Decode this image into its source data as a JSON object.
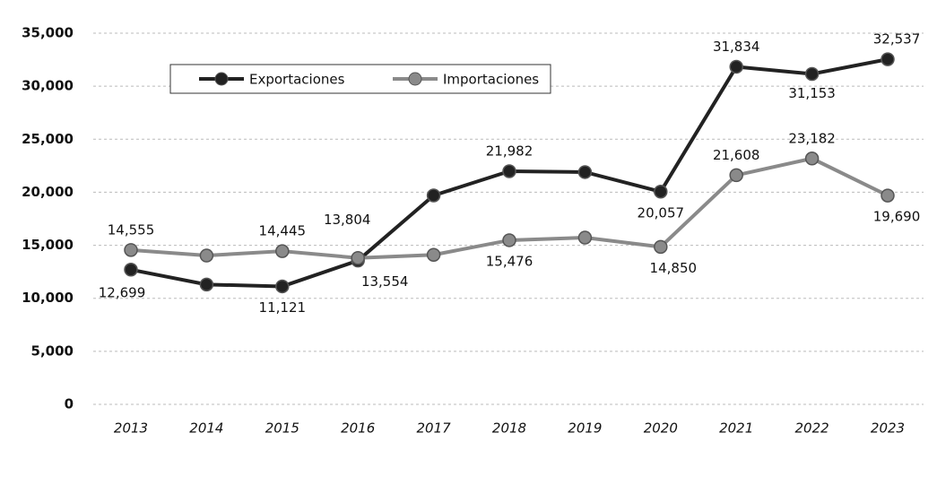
{
  "chart_data": {
    "type": "line",
    "categories": [
      "2013",
      "2014",
      "2015",
      "2016",
      "2017",
      "2018",
      "2019",
      "2020",
      "2021",
      "2022",
      "2023"
    ],
    "series": [
      {
        "name": "Exportaciones",
        "color": "#222222",
        "values": [
          12699,
          11300,
          11121,
          13554,
          19700,
          21982,
          21900,
          20057,
          31834,
          31153,
          32537
        ],
        "value_labels": [
          "12,699",
          null,
          "11,121",
          "13,554",
          null,
          "21,982",
          null,
          "20,057",
          "31,834",
          "31,153",
          "32,537"
        ]
      },
      {
        "name": "Importaciones",
        "color": "#8a8a8a",
        "values": [
          14555,
          14030,
          14445,
          13804,
          14100,
          15476,
          15720,
          14850,
          21608,
          23182,
          19690
        ],
        "value_labels": [
          "14,555",
          null,
          "14,445",
          "13,804",
          null,
          "15,476",
          null,
          "14,850",
          "21,608",
          "23,182",
          "19,690"
        ]
      }
    ],
    "ylim": [
      0,
      35000
    ],
    "yticks": [
      0,
      {
        "value": 5000,
        "label": "5,000"
      },
      {
        "value": 10000,
        "label": "10,000"
      },
      {
        "value": 15000,
        "label": "15,000"
      },
      {
        "value": 20000,
        "label": "20,000"
      },
      {
        "value": 25000,
        "label": "25,000"
      },
      {
        "value": 30000,
        "label": "30,000"
      },
      {
        "value": 35000,
        "label": "35,000"
      }
    ],
    "grid": true,
    "legend": "top-left"
  }
}
